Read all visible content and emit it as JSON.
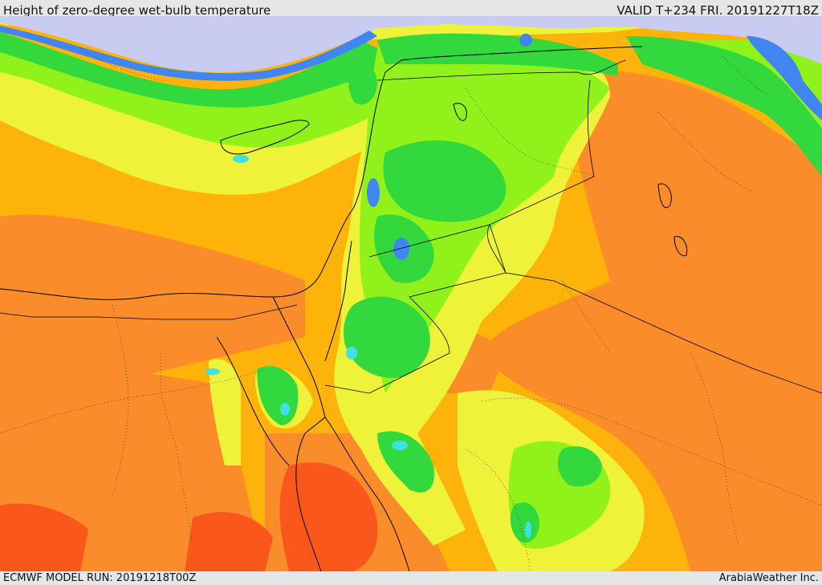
{
  "header": {
    "title": "Height of zero-degree wet-bulb temperature",
    "valid": "VALID T+234 FRI. 20191227T18Z"
  },
  "footer": {
    "model_run": "ECMWF MODEL RUN: 20191218T00Z",
    "credit": "ArabiaWeather Inc."
  },
  "colors": {
    "sea_bg": "#fdb30a",
    "orange": "#fb8c2a",
    "red_orange": "#f9571b",
    "yellow": "#eef33a",
    "light_green": "#90f21a",
    "green": "#33d83c",
    "cyan": "#3fe0e6",
    "blue": "#3f86f0",
    "lavender": "#c7ccf0"
  }
}
